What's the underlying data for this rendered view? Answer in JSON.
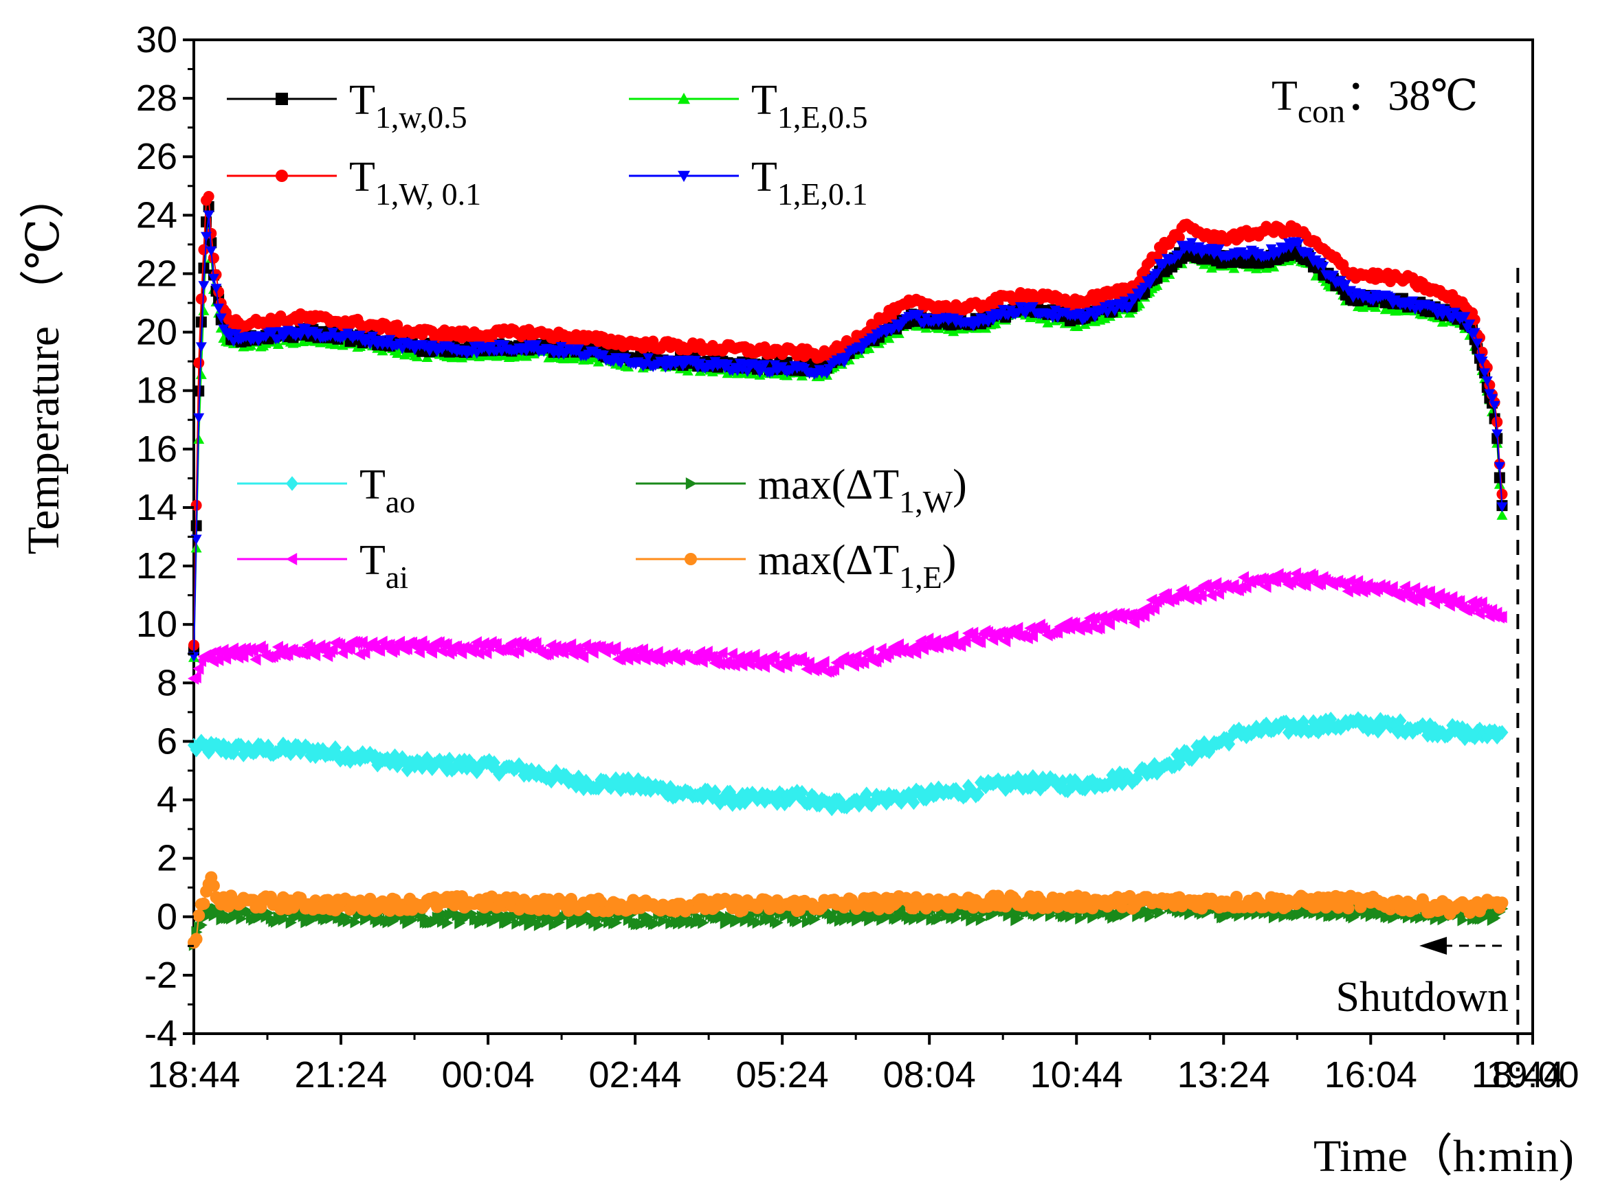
{
  "chart_data": {
    "type": "line",
    "title": "",
    "xlabel": "Time（h:min)",
    "ylabel": "Temperature （℃）",
    "ylim": [
      -4,
      30
    ],
    "yticks": [
      "-4",
      "-2",
      "0",
      "2",
      "4",
      "6",
      "8",
      "10",
      "12",
      "14",
      "16",
      "18",
      "20",
      "22",
      "24",
      "26",
      "28",
      "30"
    ],
    "xticks": [
      "18:44",
      "21:24",
      "00:04",
      "02:44",
      "05:24",
      "08:04",
      "10:44",
      "13:24",
      "16:04",
      "18:44",
      "19:00"
    ],
    "xlim_hours": [
      0,
      24.27
    ],
    "grid": false,
    "legend_position": "inside, top-left and middle",
    "annotation_condition": {
      "base": "T",
      "sub": "con",
      "rest": "：38℃"
    },
    "annotation_shutdown": "Shutdown",
    "shutdown_time": "18:44",
    "series": [
      {
        "name": "T1,w,0.5",
        "label": {
          "base": "T",
          "sub": "1,w,0.5"
        },
        "color": "#000000",
        "marker": "square",
        "x": [
          0,
          0.1,
          0.25,
          0.35,
          0.5,
          0.7,
          1,
          2,
          3,
          4,
          5,
          6,
          7,
          8,
          9,
          10,
          11,
          11.5,
          12,
          12.5,
          13,
          14,
          15,
          16,
          17,
          17.5,
          18,
          18.5,
          19,
          19.5,
          20,
          21,
          22,
          23,
          23.2,
          23.6,
          23.75
        ],
        "y": [
          9,
          19,
          24.8,
          22,
          20.5,
          19.8,
          19.8,
          20,
          19.8,
          19.5,
          19.4,
          19.5,
          19.4,
          19.1,
          19,
          18.9,
          18.8,
          18.8,
          19.5,
          20,
          20.5,
          20.3,
          20.8,
          20.5,
          21,
          22,
          22.8,
          22.5,
          22.5,
          22.5,
          22.8,
          21.2,
          21,
          20.5,
          20,
          17,
          13
        ]
      },
      {
        "name": "T1,W, 0.1",
        "label": {
          "base": "T",
          "sub": "1,W, 0.1"
        },
        "color": "#ff0000",
        "marker": "circle",
        "x": [
          0,
          0.1,
          0.25,
          0.35,
          0.5,
          0.7,
          1,
          2,
          3,
          4,
          5,
          6,
          7,
          8,
          9,
          10,
          11,
          11.5,
          12,
          12.5,
          13,
          14,
          15,
          16,
          17,
          17.5,
          18,
          18.5,
          19,
          19.5,
          20,
          21,
          22,
          23,
          23.2,
          23.6,
          23.75
        ],
        "y": [
          9.3,
          20,
          25.3,
          22.5,
          21,
          20.3,
          20.3,
          20.5,
          20.3,
          20,
          19.9,
          20,
          19.8,
          19.6,
          19.5,
          19.4,
          19.3,
          19.2,
          19.8,
          20.5,
          21,
          20.8,
          21.3,
          21,
          21.5,
          22.8,
          23.6,
          23.2,
          23.3,
          23.5,
          23.5,
          22,
          21.8,
          21,
          20.5,
          17.5,
          13.5
        ]
      },
      {
        "name": "T1,E,0.5",
        "label": {
          "base": "T",
          "sub": "1,E,0.5"
        },
        "color": "#00ee00",
        "marker": "triangle-up",
        "x": [
          0,
          0.1,
          0.25,
          0.35,
          0.5,
          0.7,
          1,
          2,
          3,
          4,
          5,
          6,
          7,
          8,
          9,
          10,
          11,
          11.5,
          12,
          12.5,
          13,
          14,
          15,
          16,
          17,
          17.5,
          18,
          18.5,
          19,
          19.5,
          20,
          21,
          22,
          23,
          23.2,
          23.6,
          23.75
        ],
        "y": [
          9,
          17,
          24,
          21.5,
          20,
          19.6,
          19.6,
          19.8,
          19.6,
          19.3,
          19.2,
          19.3,
          19.2,
          18.9,
          18.8,
          18.7,
          18.6,
          18.6,
          19.3,
          19.8,
          20.3,
          20.1,
          20.6,
          20.3,
          20.8,
          21.8,
          22.6,
          22.3,
          22.3,
          22.3,
          22.6,
          21,
          20.8,
          20.3,
          19.8,
          16.8,
          12.8
        ]
      },
      {
        "name": "T1,E,0.1",
        "label": {
          "base": "T",
          "sub": "1,E,0.1"
        },
        "color": "#0000ff",
        "marker": "triangle-down",
        "x": [
          0,
          0.1,
          0.25,
          0.35,
          0.5,
          0.7,
          1,
          2,
          3,
          4,
          5,
          6,
          7,
          8,
          9,
          10,
          11,
          11.5,
          12,
          12.5,
          13,
          14,
          15,
          16,
          17,
          17.5,
          18,
          18.5,
          19,
          19.5,
          20,
          21,
          22,
          23,
          23.2,
          23.6,
          23.75
        ],
        "y": [
          9,
          18,
          24.5,
          22,
          20.3,
          19.8,
          19.8,
          20,
          19.8,
          19.5,
          19.4,
          19.5,
          19.3,
          19,
          18.9,
          18.8,
          18.7,
          18.7,
          19.4,
          20,
          20.5,
          20.3,
          20.8,
          20.5,
          21,
          22.2,
          23,
          22.7,
          22.7,
          22.7,
          23,
          21.3,
          21,
          20.5,
          20,
          17.3,
          13
        ]
      },
      {
        "name": "Tao",
        "label": {
          "base": "T",
          "sub": "ao"
        },
        "color": "#33eeee",
        "marker": "diamond",
        "x": [
          0,
          1,
          2,
          3,
          4,
          5,
          6,
          7,
          8,
          9,
          10,
          11,
          11.5,
          12,
          13,
          14,
          15,
          16,
          17,
          18,
          19,
          20,
          21,
          22,
          23,
          23.2,
          23.75
        ],
        "y": [
          5.8,
          5.7,
          5.7,
          5.5,
          5.2,
          5.2,
          5,
          4.6,
          4.5,
          4.2,
          4,
          4.1,
          3.8,
          4,
          4.1,
          4.3,
          4.6,
          4.5,
          4.8,
          5.5,
          6.3,
          6.5,
          6.6,
          6.5,
          6.3,
          6.2,
          6.4
        ]
      },
      {
        "name": "Tai",
        "label": {
          "base": "T",
          "sub": "ai"
        },
        "color": "#ff00ff",
        "marker": "triangle-left",
        "x": [
          0,
          0.1,
          0.5,
          1,
          2,
          3,
          4,
          5,
          6,
          7,
          8,
          9,
          10,
          11,
          11.5,
          12,
          13,
          14,
          15,
          16,
          17,
          17.5,
          18,
          19,
          20,
          21,
          22,
          23,
          23.75
        ],
        "y": [
          8,
          8.7,
          9,
          9,
          9.1,
          9.2,
          9.2,
          9.2,
          9.2,
          9.1,
          9,
          8.9,
          8.8,
          8.7,
          8.6,
          8.8,
          9.2,
          9.5,
          9.7,
          10,
          10.2,
          10.8,
          11,
          11.4,
          11.6,
          11.3,
          11.1,
          10.7,
          10.4
        ]
      },
      {
        "name": "max(ΔT1,W)",
        "label": {
          "base": "max(ΔT",
          "sub": "1,W",
          "after": ")"
        },
        "color": "#1a8a1a",
        "marker": "triangle-right",
        "x": [
          0,
          0.2,
          0.5,
          1,
          3,
          5,
          7,
          9,
          11,
          13,
          15,
          17,
          19,
          21,
          23,
          23.75
        ],
        "y": [
          -1,
          0.2,
          0.1,
          0,
          0,
          0,
          -0.1,
          0,
          0,
          0.1,
          0.1,
          0.2,
          0.2,
          0.2,
          0.1,
          0.1
        ]
      },
      {
        "name": "max(ΔT1,E)",
        "label": {
          "base": "max(ΔT",
          "sub": "1,E",
          "after": ")"
        },
        "color": "#ff8c1a",
        "marker": "circle",
        "x": [
          0,
          0.1,
          0.3,
          0.5,
          1,
          3,
          5,
          7,
          9,
          11,
          13,
          15,
          17,
          19,
          21,
          23,
          23.75
        ],
        "y": [
          -1,
          0,
          1.2,
          0.5,
          0.5,
          0.4,
          0.5,
          0.4,
          0.4,
          0.4,
          0.5,
          0.5,
          0.5,
          0.5,
          0.5,
          0.3,
          0.4
        ]
      }
    ]
  }
}
